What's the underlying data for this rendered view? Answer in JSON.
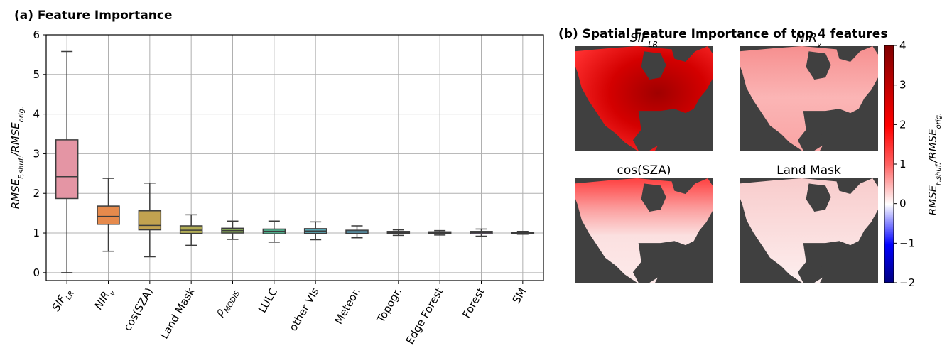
{
  "panel_a": {
    "title": "(a) Feature Importance",
    "ylabel_main": "RMSE",
    "ylabel_sub1": "F,shuf.",
    "ylabel_mid": "/RMSE",
    "ylabel_sub2": "orig."
  },
  "panel_b": {
    "title": "(b) Spatial Feature Importance of top 4 features",
    "maps": [
      {
        "title_main": "SIF",
        "title_sub": "LR",
        "italic": true,
        "level": "high"
      },
      {
        "title_main": "NIR",
        "title_sub": "v",
        "italic": true,
        "level": "medium"
      },
      {
        "title_main": "cos(SZA)",
        "title_sub": "",
        "italic": false,
        "level": "north"
      },
      {
        "title_main": "Land Mask",
        "title_sub": "",
        "italic": false,
        "level": "low"
      }
    ],
    "colorbar": {
      "ticks": [
        "4",
        "3",
        "2",
        "1",
        "0",
        "−1",
        "−2"
      ],
      "range": [
        -2,
        4
      ],
      "label_main": "RMSE",
      "label_sub1": "F,shuf.",
      "label_mid": "/RMSE",
      "label_sub2": "orig.",
      "colors": {
        "low": "#00007f",
        "mid": "#ffffff",
        "high": "#7f0000"
      }
    },
    "land_color": "#404040"
  },
  "chart_data": {
    "type": "box",
    "ylim": [
      -0.2,
      6
    ],
    "yticks": [
      0,
      1,
      2,
      3,
      4,
      5,
      6
    ],
    "grid": true,
    "categories": [
      {
        "main": "SIF",
        "sub": "LR",
        "italic": true
      },
      {
        "main": "NIR",
        "sub": "v",
        "italic": true
      },
      {
        "main": "cos(SZA)",
        "sub": "",
        "italic": false
      },
      {
        "main": "Land Mask",
        "sub": "",
        "italic": false
      },
      {
        "main": "ρ",
        "sub": "MODIS",
        "italic": true
      },
      {
        "main": "LULC",
        "sub": "",
        "italic": false
      },
      {
        "main": "other VIs",
        "sub": "",
        "italic": false
      },
      {
        "main": "Meteor.",
        "sub": "",
        "italic": false
      },
      {
        "main": "Topogr.",
        "sub": "",
        "italic": false
      },
      {
        "main": "Edge Forest",
        "sub": "",
        "italic": false
      },
      {
        "main": "Forest",
        "sub": "",
        "italic": false
      },
      {
        "main": "SM",
        "sub": "",
        "italic": false
      }
    ],
    "boxes": [
      {
        "whislo": 0.0,
        "q1": 1.87,
        "med": 2.42,
        "q3": 3.35,
        "whishi": 5.58,
        "color": "#e495a4"
      },
      {
        "whislo": 0.54,
        "q1": 1.22,
        "med": 1.42,
        "q3": 1.68,
        "whishi": 2.38,
        "color": "#e68a4c"
      },
      {
        "whislo": 0.4,
        "q1": 1.08,
        "med": 1.19,
        "q3": 1.56,
        "whishi": 2.26,
        "color": "#c2a250"
      },
      {
        "whislo": 0.69,
        "q1": 0.99,
        "med": 1.07,
        "q3": 1.18,
        "whishi": 1.46,
        "color": "#b2ad55"
      },
      {
        "whislo": 0.84,
        "q1": 1.0,
        "med": 1.06,
        "q3": 1.12,
        "whishi": 1.3,
        "color": "#8cb05a"
      },
      {
        "whislo": 0.77,
        "q1": 0.98,
        "med": 1.04,
        "q3": 1.1,
        "whishi": 1.3,
        "color": "#4fa988"
      },
      {
        "whislo": 0.83,
        "q1": 0.99,
        "med": 1.05,
        "q3": 1.11,
        "whishi": 1.28,
        "color": "#5aa8b5"
      },
      {
        "whislo": 0.88,
        "q1": 0.99,
        "med": 1.03,
        "q3": 1.07,
        "whishi": 1.18,
        "color": "#5ea3bd"
      },
      {
        "whislo": 0.94,
        "q1": 0.99,
        "med": 1.01,
        "q3": 1.04,
        "whishi": 1.08,
        "color": "#6b9fca"
      },
      {
        "whislo": 0.95,
        "q1": 0.99,
        "med": 1.01,
        "q3": 1.03,
        "whishi": 1.06,
        "color": "#8c95d4"
      },
      {
        "whislo": 0.92,
        "q1": 0.98,
        "med": 1.01,
        "q3": 1.04,
        "whishi": 1.1,
        "color": "#b88ed0"
      },
      {
        "whislo": 0.97,
        "q1": 0.99,
        "med": 1.0,
        "q3": 1.02,
        "whishi": 1.04,
        "color": "#d98bc4"
      }
    ]
  }
}
